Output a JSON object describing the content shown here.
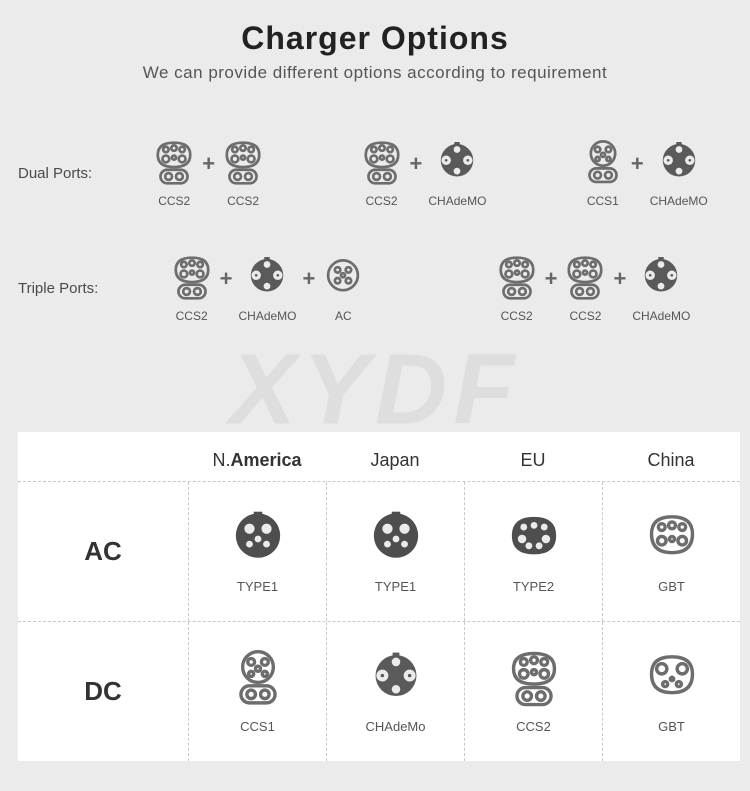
{
  "title": "Charger Options",
  "subtitle": "We can provide different options according to requirement",
  "watermark": "XYDF",
  "plus_symbol": "+",
  "colors": {
    "bg": "#ebebeb",
    "panel": "#ffffff",
    "icon": "#6d6d6d",
    "icon_dark": "#4a4a4a",
    "text": "#333333",
    "muted": "#555555",
    "divider": "#c8c8c8"
  },
  "port_rows": [
    {
      "label": "Dual Ports:",
      "combos": [
        [
          {
            "type": "ccs2",
            "label": "CCS2"
          },
          {
            "type": "ccs2",
            "label": "CCS2"
          }
        ],
        [
          {
            "type": "ccs2",
            "label": "CCS2"
          },
          {
            "type": "chademo",
            "label": "CHAdeMO"
          }
        ],
        [
          {
            "type": "ccs1",
            "label": "CCS1"
          },
          {
            "type": "chademo",
            "label": "CHAdeMO"
          }
        ]
      ]
    },
    {
      "label": "Triple Ports:",
      "combos": [
        [
          {
            "type": "ccs2",
            "label": "CCS2"
          },
          {
            "type": "chademo",
            "label": "CHAdeMO"
          },
          {
            "type": "ac",
            "label": "AC"
          }
        ],
        [
          {
            "type": "ccs2",
            "label": "CCS2"
          },
          {
            "type": "ccs2",
            "label": "CCS2"
          },
          {
            "type": "chademo",
            "label": "CHAdeMO"
          }
        ]
      ]
    }
  ],
  "region_table": {
    "regions": [
      "N.America",
      "Japan",
      "EU",
      "China"
    ],
    "rows": [
      {
        "head": "AC",
        "cells": [
          {
            "type": "type1",
            "label": "TYPE1"
          },
          {
            "type": "type1",
            "label": "TYPE1"
          },
          {
            "type": "type2",
            "label": "TYPE2"
          },
          {
            "type": "gbt_ac",
            "label": "GBT"
          }
        ]
      },
      {
        "head": "DC",
        "cells": [
          {
            "type": "ccs1",
            "label": "CCS1"
          },
          {
            "type": "chademo",
            "label": "CHAdeMo"
          },
          {
            "type": "ccs2",
            "label": "CCS2"
          },
          {
            "type": "gbt_dc",
            "label": "GBT"
          }
        ]
      }
    ]
  }
}
